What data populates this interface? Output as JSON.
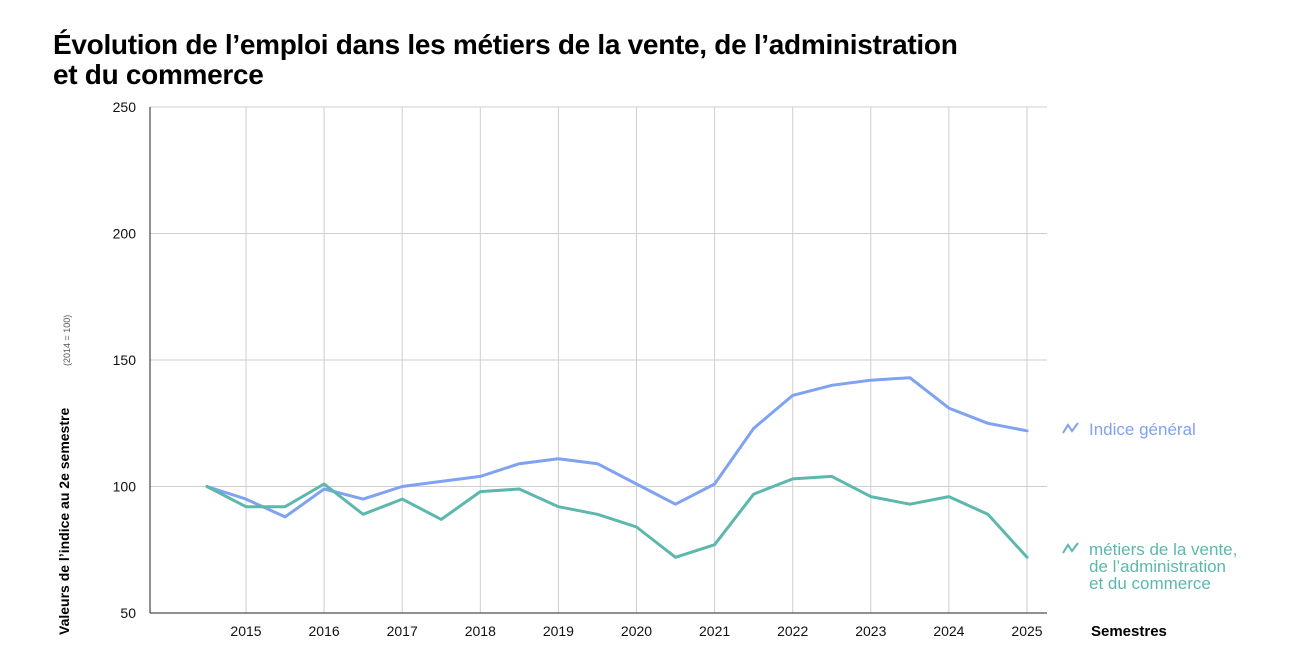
{
  "title_lines": [
    "Évolution de l’emploi dans les métiers de la vente, de l’administration",
    "et du commerce"
  ],
  "chart_data": {
    "type": "line",
    "title": "Évolution de l’emploi dans les métiers de la vente, de l’administration et du commerce",
    "ylabel": "Valeurs de l’indice au 2e semestre",
    "ylabel_note": "(2014 = 100)",
    "xlabel": "Semestres",
    "ylim": [
      50,
      250
    ],
    "yticks": [
      50,
      100,
      150,
      200,
      250
    ],
    "xticks": [
      "2015",
      "2016",
      "2017",
      "2018",
      "2019",
      "2020",
      "2021",
      "2022",
      "2023",
      "2024",
      "2025"
    ],
    "x": [
      2014.5,
      2015,
      2015.5,
      2016,
      2016.5,
      2017,
      2017.5,
      2018,
      2018.5,
      2019,
      2019.5,
      2020,
      2020.5,
      2021,
      2021.5,
      2022,
      2022.5,
      2023,
      2023.5,
      2024,
      2024.5,
      2025
    ],
    "series": [
      {
        "name": "Indice général",
        "color": "#7fa2f2",
        "values": [
          100,
          95,
          88,
          99,
          95,
          100,
          102,
          104,
          109,
          111,
          109,
          101,
          93,
          101,
          123,
          136,
          140,
          142,
          143,
          131,
          125,
          122
        ]
      },
      {
        "name": "métiers de la vente, de l’administration et du commerce",
        "label_lines": [
          "métiers de la vente,",
          "de l’administration",
          "et du commerce"
        ],
        "color": "#5cb8ad",
        "values": [
          100,
          92,
          92,
          101,
          89,
          95,
          87,
          98,
          99,
          92,
          89,
          84,
          72,
          77,
          97,
          103,
          104,
          96,
          93,
          96,
          89,
          72
        ]
      }
    ],
    "grid": true,
    "legend": "right"
  }
}
